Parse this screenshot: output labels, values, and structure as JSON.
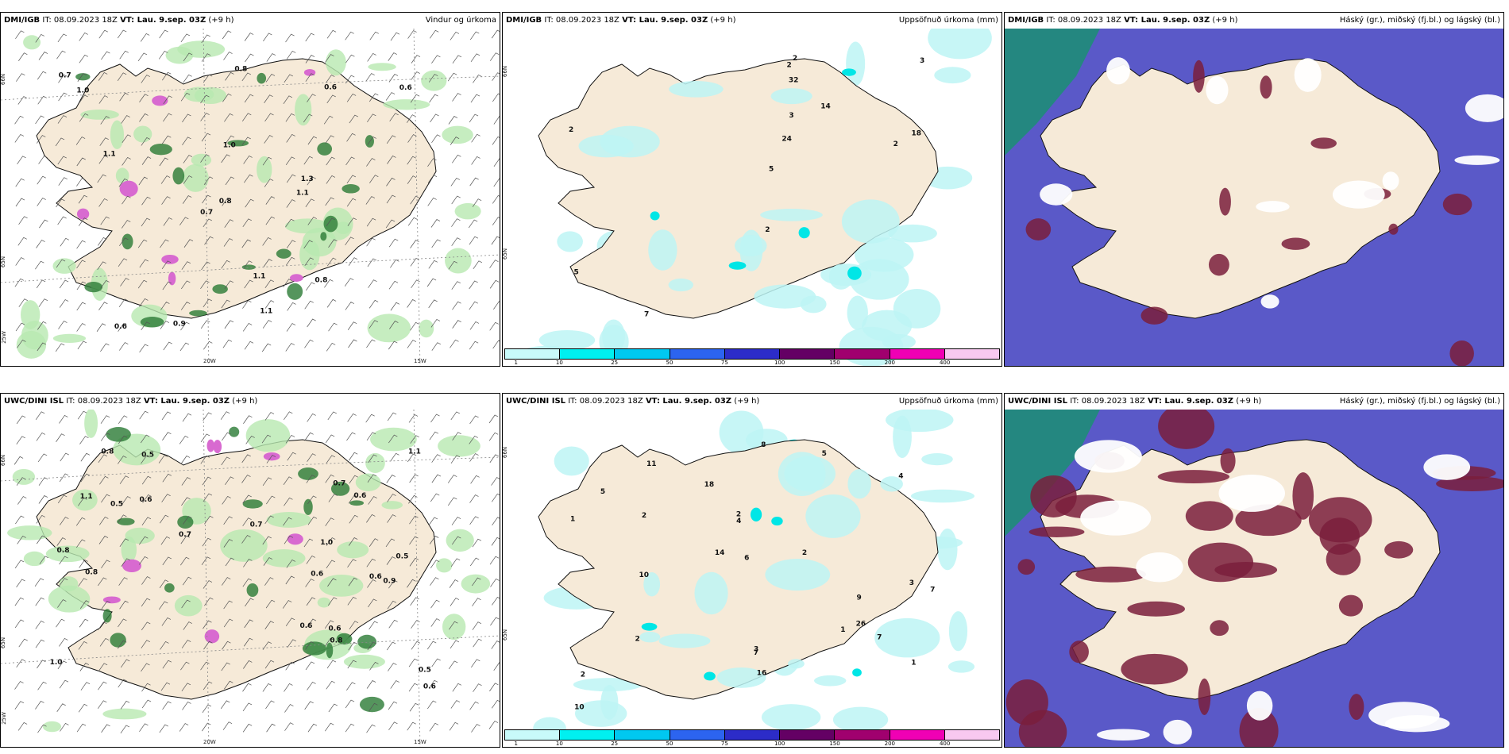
{
  "colors": {
    "land": "#f6ead8",
    "sea": "#ffffff",
    "precip_light": "#bdf5f5",
    "precip_med": "#00e6e6",
    "wind_green_light": "#b8e9b0",
    "wind_green_dark": "#2a7a34",
    "magenta": "#d86ad0",
    "cloud_high": "#1e8c78",
    "cloud_mid": "#5a59c8",
    "cloud_low": "#7a1e3c"
  },
  "legend": {
    "colors": [
      "#c8fafa",
      "#00f0f0",
      "#00c8f0",
      "#2c64f0",
      "#2c2cc8",
      "#640064",
      "#a0006e",
      "#f000b4",
      "#f8c8f0"
    ],
    "ticks": [
      "1",
      "10",
      "25",
      "50",
      "75",
      "100",
      "150",
      "200",
      "400"
    ]
  },
  "top_row": {
    "panel1": {
      "model": "DMI/IGB",
      "it": "IT: 08.09.2023 18Z",
      "vt_label": "VT: Lau. 9.sep. 03Z",
      "lead": "(+9 h)",
      "right_title": "Vindur og úrkoma",
      "values": [
        "0.8",
        "1.0",
        "0.6",
        "1.1",
        "0.8",
        "1.1",
        "0.6",
        "1.1",
        "1.1",
        "0.9",
        "0.7",
        "1.0",
        "0.8",
        "0.7",
        "1.3",
        "0.6"
      ],
      "lon_labels": [
        "20W",
        "15W"
      ],
      "lat_labels": [
        "66N",
        "65N",
        "25W"
      ]
    },
    "panel2": {
      "model": "DMI/IGB",
      "it": "IT: 08.09.2023 18Z",
      "vt_label": "VT: Lau. 9.sep. 03Z",
      "lead": "(+9 h)",
      "right_title": "Uppsöfnuð úrkoma (mm)",
      "values": [
        "7",
        "5",
        "2",
        "24",
        "14",
        "32",
        "3",
        "18",
        "2",
        "2",
        "2",
        "2",
        "3",
        "5"
      ],
      "lat_labels": [
        "66N",
        "65N"
      ]
    },
    "panel3": {
      "model": "DMI/IGB",
      "it": "IT: 08.09.2023 18Z",
      "vt_label": "VT: Lau. 9.sep. 03Z",
      "lead": "(+9 h)",
      "right_title": "Háský (gr.), miðský (fj.bl.) og lágský (bl.)"
    }
  },
  "bottom_row": {
    "panel1": {
      "model": "UWC/DINI ISL",
      "it": "IT: 08.09.2023 18Z",
      "vt_label": "VT: Lau. 9.sep. 03Z",
      "lead": "(+9 h)",
      "values": [
        "1.0",
        "0.6",
        "0.9",
        "0.6",
        "0.5",
        "1.0",
        "0.7",
        "0.5",
        "0.6",
        "1.1",
        "0.6",
        "0.8",
        "0.6",
        "0.8",
        "0.5",
        "0.7",
        "0.7",
        "0.8",
        "0.6",
        "0.5",
        "1.1",
        "0.6",
        "0.8"
      ],
      "lon_labels": [
        "20W",
        "15W"
      ],
      "lat_labels": [
        "66N",
        "65N",
        "25W"
      ]
    },
    "panel2": {
      "model": "UWC/DINI ISL",
      "it": "IT: 08.09.2023 18Z",
      "vt_label": "VT: Lau. 9.sep. 03Z",
      "lead": "(+9 h)",
      "right_title": "Uppsöfnuð úrkoma (mm)",
      "values": [
        "1",
        "9",
        "7",
        "5",
        "10",
        "26",
        "14",
        "16",
        "18",
        "11",
        "10",
        "7",
        "6",
        "5",
        "4",
        "3",
        "2",
        "2",
        "2",
        "2",
        "1",
        "2",
        "1",
        "3",
        "8",
        "7",
        "4"
      ],
      "lat_labels": [
        "66N",
        "65N"
      ]
    },
    "panel3": {
      "model": "UWC/DINI ISL",
      "it": "IT: 08.09.2023 18Z",
      "vt_label": "VT: Lau. 9.sep. 03Z",
      "lead": "(+9 h)",
      "right_title": "Háský (gr.), miðský (fj.bl.) og lágský (bl.)"
    }
  }
}
